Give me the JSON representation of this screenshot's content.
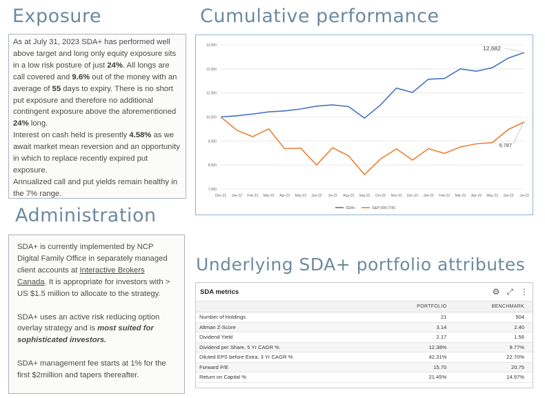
{
  "exposure": {
    "title": "Exposure",
    "p1": "As at July 31, 2023 SDA+ has performed well above target and long only equity exposure sits in a low risk posture of just ",
    "p1_bold": "24%",
    "p2": ".  All longs are call covered and ",
    "p2_bold": "9.6%",
    "p3": " out of the money with an average of ",
    "p3_bold": "55",
    "p4": " days to expiry.  There is no short put exposure and therefore no additional contingent exposure above the aforementioned ",
    "p4_bold": "24%",
    "p5": " long.",
    "p6": "Interest on cash held is presently ",
    "p6_bold": "4.58%",
    "p7": " as we await market mean reversion and an opportunity in which to replace recently expired put exposure.",
    "p8": "Annualized call and put yields remain healthy in the 7% range."
  },
  "administration": {
    "title": "Administration",
    "p1a": "SDA+ is currently implemented by NCP Digital Family Office in separately managed client accounts at ",
    "p1_link": "Interactive Brokers Canada",
    "p1b": ".  It is appropriate for investors with > US $1.5 million to allocate to the strategy.",
    "p2a": "SDA+ uses an active risk reducing option overlay strategy and is ",
    "p2_bi": "most suited for sophisticated investors.",
    "p3": "SDA+ management fee starts at 1% for the first $2million and tapers thereafter."
  },
  "performance": {
    "title": "Cumulative performance"
  },
  "chart_data": {
    "type": "line",
    "categories": [
      "Dec-21",
      "Jan-22",
      "Feb-22",
      "Mar-22",
      "Apr-22",
      "May-22",
      "Jun-22",
      "Jul-22",
      "Aug-22",
      "Sep-22",
      "Oct-22",
      "Nov-22",
      "Dec-22",
      "Jan-23",
      "Feb-23",
      "Mar-23",
      "Apr-23",
      "May-23",
      "Jun-23",
      "Jul-23"
    ],
    "series": [
      {
        "name": "SDA+",
        "color": "#4472c4",
        "values": [
          10000,
          10050,
          10120,
          10210,
          10250,
          10330,
          10450,
          10500,
          10430,
          9950,
          10500,
          11200,
          11020,
          11570,
          11600,
          12000,
          11900,
          12050,
          12450,
          12682
        ]
      },
      {
        "name": "S&P 500 (TR)",
        "color": "#ed7d31",
        "values": [
          10000,
          9450,
          9180,
          9500,
          8680,
          8700,
          8000,
          8720,
          8380,
          7600,
          8250,
          8670,
          8200,
          8680,
          8480,
          8750,
          8880,
          8930,
          9480,
          9787
        ]
      }
    ],
    "yticks": [
      "7,000",
      "8,000",
      "9,000",
      "10,000",
      "11,000",
      "12,000",
      "13,000"
    ],
    "ylim": [
      7000,
      13000
    ],
    "annotations": [
      "12,682",
      "9,787"
    ],
    "grid": true,
    "legend": "bottom"
  },
  "attributes": {
    "title": "Underlying SDA+ portfolio attributes",
    "card_title": "SDA metrics",
    "col_portfolio": "PORTFOLIO",
    "col_benchmark": "BENCHMARK",
    "rows": [
      {
        "metric": "Number of Holdings",
        "portfolio": "21",
        "benchmark": "504"
      },
      {
        "metric": "Altman Z-Score",
        "portfolio": "3.14",
        "benchmark": "2.40"
      },
      {
        "metric": "Dividend Yield",
        "portfolio": "2.17",
        "benchmark": "1.56"
      },
      {
        "metric": "Dividend per Share, 5 Yr CAGR %",
        "portfolio": "12.38%",
        "benchmark": "9.77%"
      },
      {
        "metric": "Diluted EPS before Extra, 3 Yr CAGR %",
        "portfolio": "42.31%",
        "benchmark": "22.70%"
      },
      {
        "metric": "Forward P/E",
        "portfolio": "15.70",
        "benchmark": "20.75"
      },
      {
        "metric": "Return on Capital %",
        "portfolio": "21.45%",
        "benchmark": "14.97%"
      }
    ],
    "icons": [
      "gear-icon",
      "expand-icon",
      "more-icon"
    ]
  }
}
